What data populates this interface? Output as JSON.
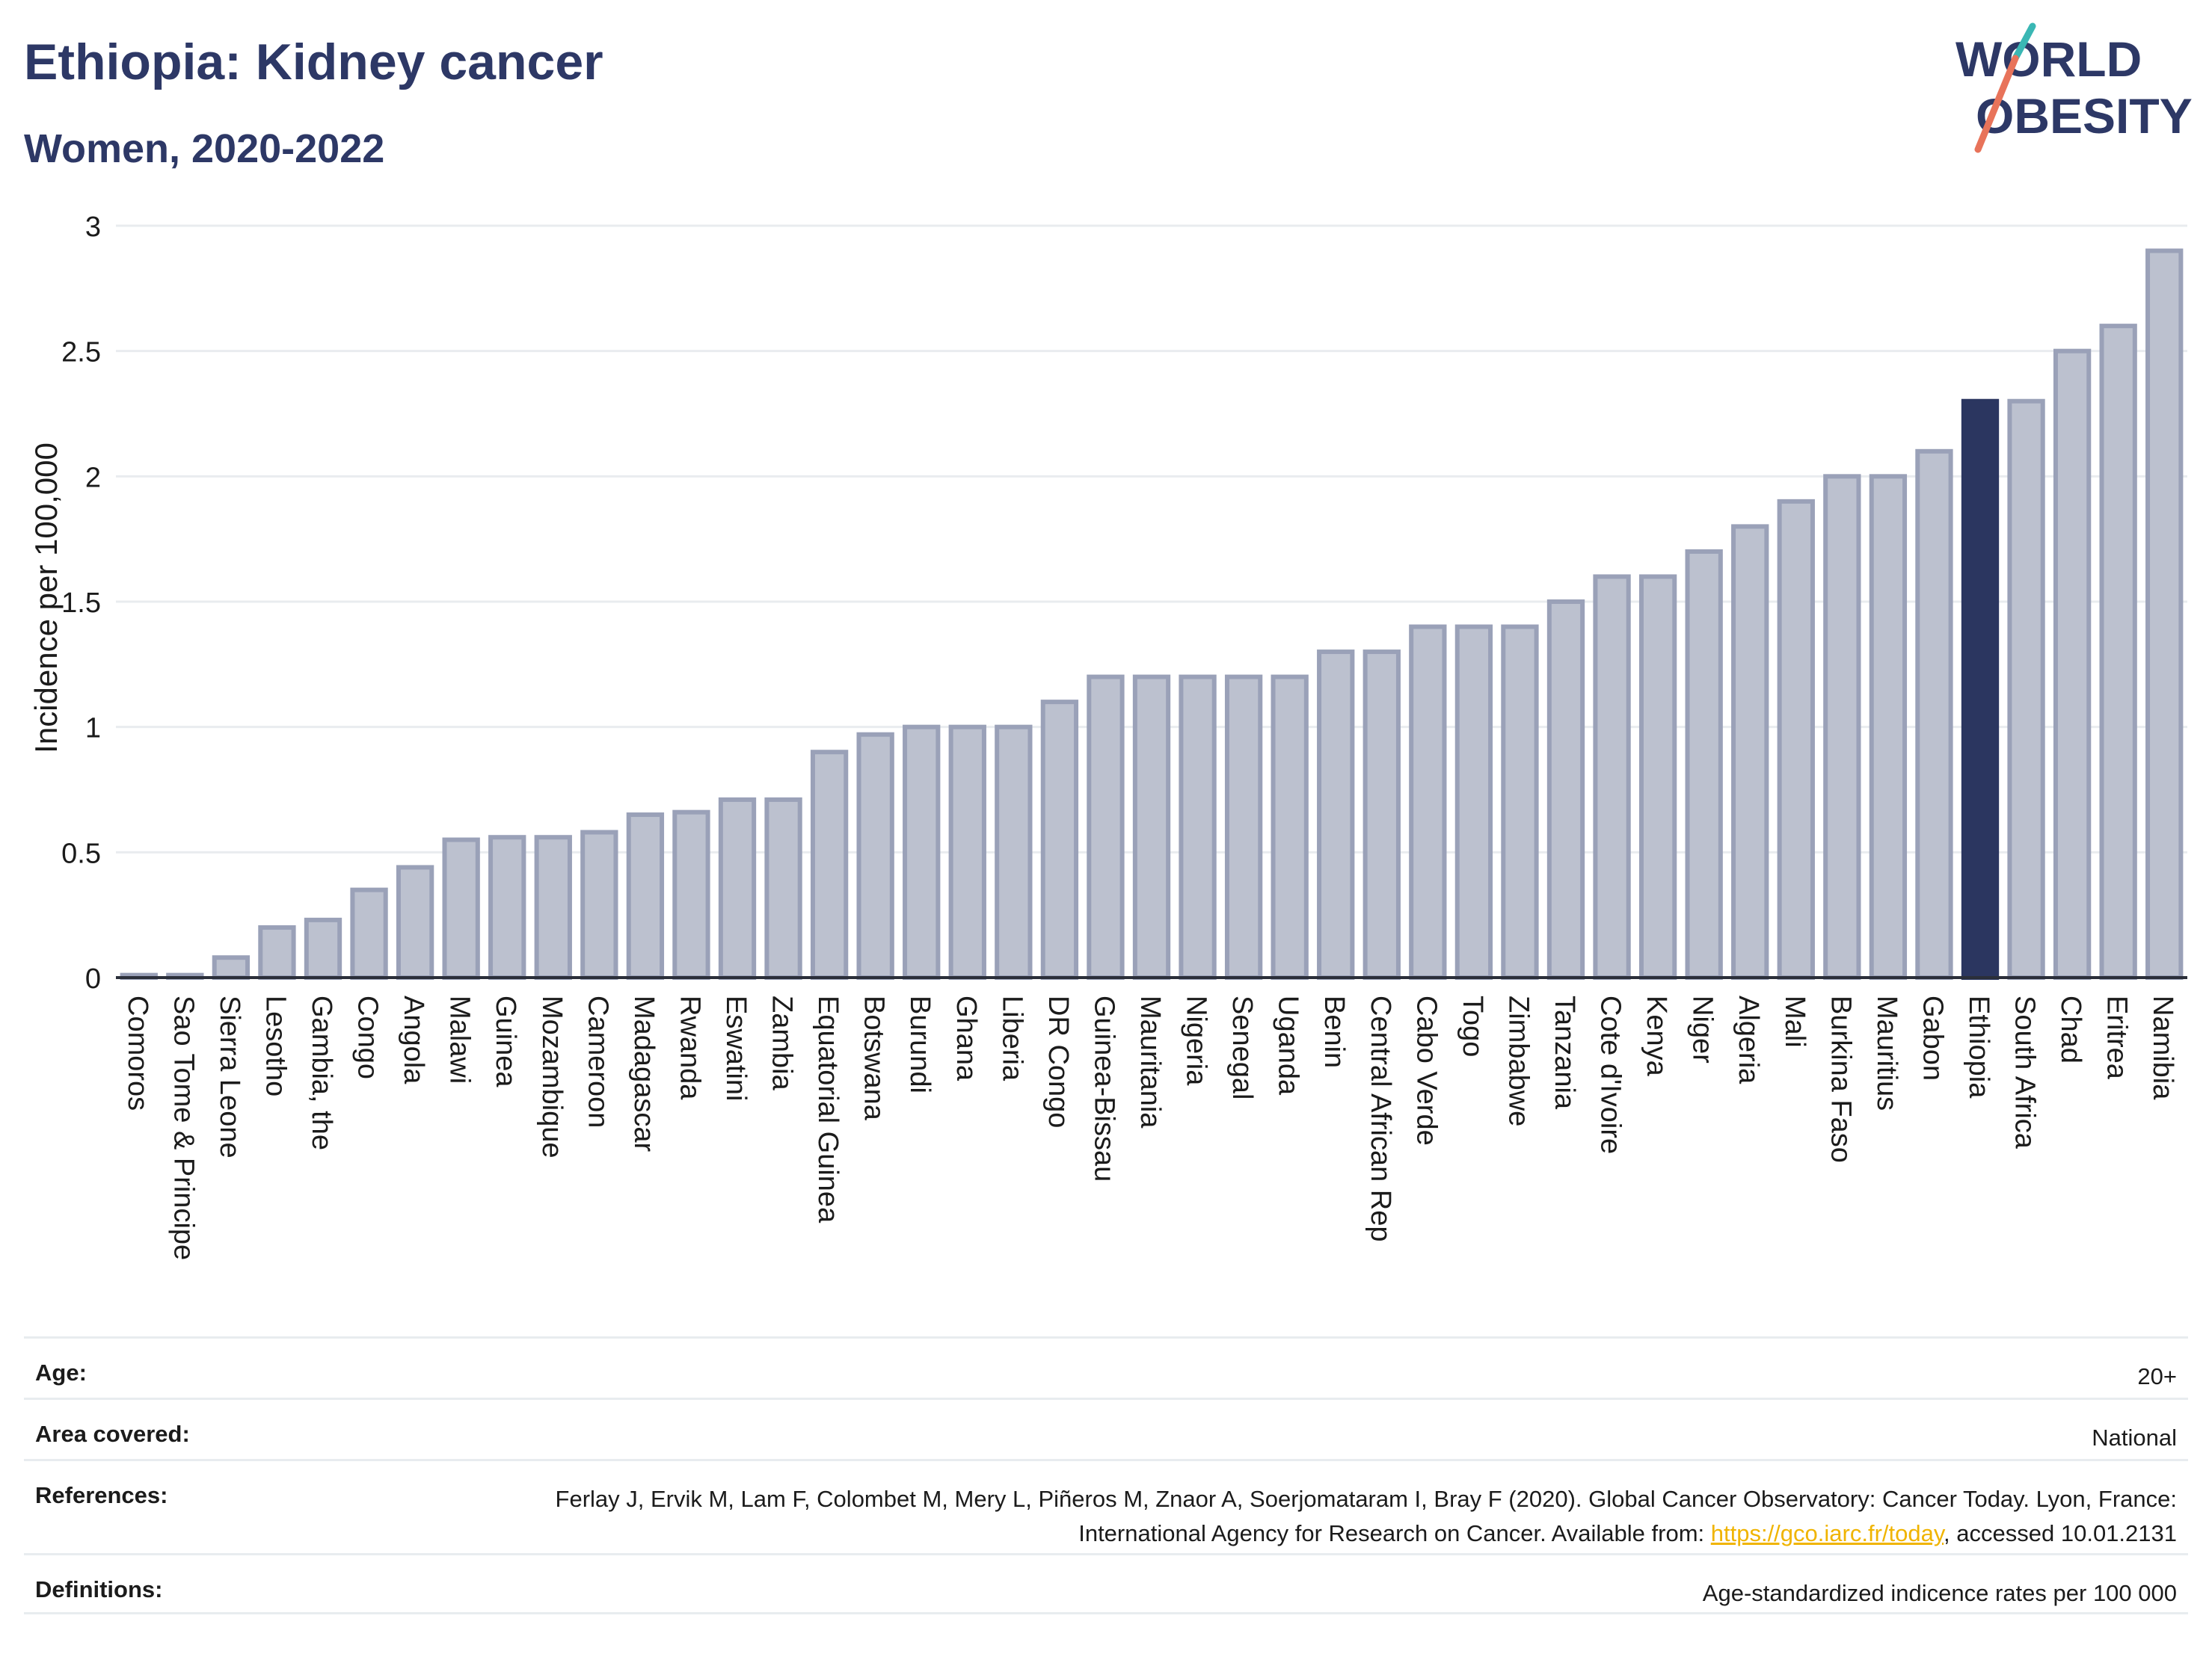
{
  "title": "Ethiopia: Kidney cancer",
  "subtitle": "Women, 2020-2022",
  "logo": {
    "line1": "WORLD",
    "line2": "OBESITY"
  },
  "colors": {
    "highlight": "#2b3660",
    "bar": "#bcc1cf",
    "bar_border": "#9aa1b8",
    "text": "#2d3866",
    "grid": "#e9ecef",
    "link": "#f0b400"
  },
  "chart_data": {
    "type": "bar",
    "ylabel": "Incidence per 100,000",
    "ylim": [
      0,
      3
    ],
    "yticks": [
      0,
      0.5,
      1,
      1.5,
      2,
      2.5,
      3
    ],
    "ytick_labels": [
      "0",
      "0.5",
      "1",
      "1.5",
      "2",
      "2.5",
      "3"
    ],
    "grid": true,
    "highlight": "Ethiopia",
    "categories": [
      "Comoros",
      "Sao Tome & Principe",
      "Sierra Leone",
      "Lesotho",
      "Gambia, the",
      "Congo",
      "Angola",
      "Malawi",
      "Guinea",
      "Mozambique",
      "Cameroon",
      "Madagascar",
      "Rwanda",
      "Eswatini",
      "Zambia",
      "Equatorial Guinea",
      "Botswana",
      "Burundi",
      "Ghana",
      "Liberia",
      "DR Congo",
      "Guinea-Bissau",
      "Mauritania",
      "Nigeria",
      "Senegal",
      "Uganda",
      "Benin",
      "Central African Rep",
      "Cabo Verde",
      "Togo",
      "Zimbabwe",
      "Tanzania",
      "Cote d'Ivoire",
      "Kenya",
      "Niger",
      "Algeria",
      "Mali",
      "Burkina Faso",
      "Mauritius",
      "Gabon",
      "Ethiopia",
      "South Africa",
      "Chad",
      "Eritrea",
      "Namibia"
    ],
    "values": [
      0.01,
      0.01,
      0.08,
      0.2,
      0.23,
      0.35,
      0.44,
      0.55,
      0.56,
      0.56,
      0.58,
      0.65,
      0.66,
      0.71,
      0.71,
      0.9,
      0.97,
      1.0,
      1.0,
      1.0,
      1.1,
      1.2,
      1.2,
      1.2,
      1.2,
      1.2,
      1.3,
      1.3,
      1.4,
      1.4,
      1.4,
      1.5,
      1.6,
      1.6,
      1.7,
      1.8,
      1.9,
      2.0,
      2.0,
      2.1,
      2.3,
      2.3,
      2.5,
      2.6,
      2.9
    ]
  },
  "meta": {
    "age": {
      "label": "Age:",
      "value": "20+"
    },
    "area": {
      "label": "Area covered:",
      "value": "National"
    },
    "references": {
      "label": "References:",
      "text_before": "Ferlay J, Ervik M, Lam F, Colombet M, Mery L, Piñeros M, Znaor A, Soerjomataram I, Bray F (2020). Global Cancer Observatory: Cancer Today. Lyon, France: International Agency for Research on Cancer. Available from: ",
      "link": "https://gco.iarc.fr/today",
      "text_after": ", accessed 10.01.2131"
    },
    "definitions": {
      "label": "Definitions:",
      "value": "Age-standardized indicence rates per 100 000"
    }
  }
}
